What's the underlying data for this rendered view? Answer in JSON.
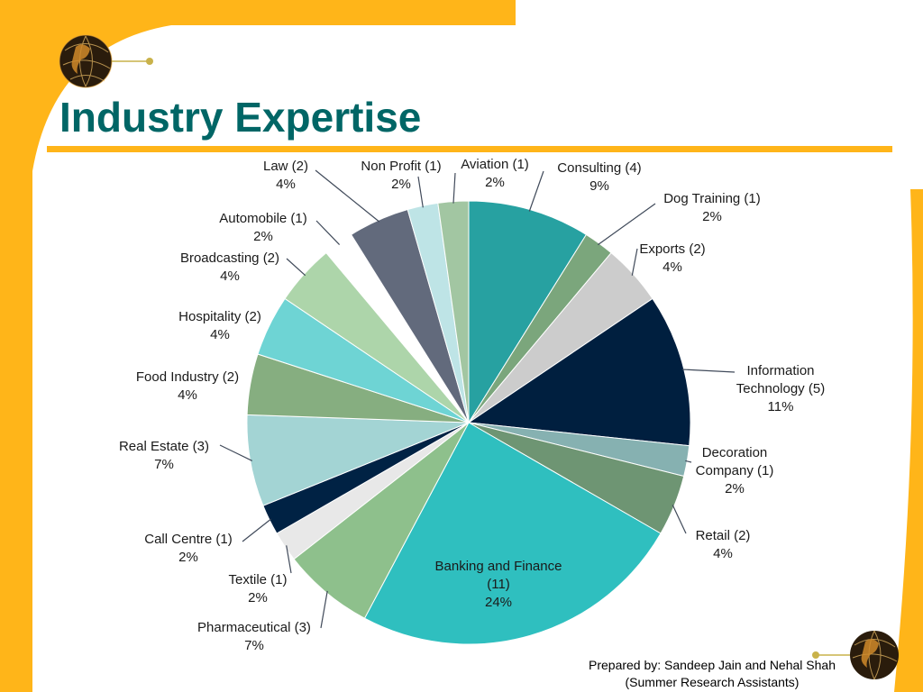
{
  "slide": {
    "title": "Industry Expertise",
    "footer_line1": "Prepared by: Sandeep Jain and Nehal Shah",
    "footer_line2": "(Summer Research Assistants)",
    "accent_color": "#FFB519",
    "title_color": "#006666",
    "logo_icon": "globe-icon"
  },
  "chart_data": {
    "type": "pie",
    "title": "",
    "start_angle_deg": 0,
    "direction": "clockwise",
    "slices": [
      {
        "name": "Consulting",
        "count": 4,
        "percent": "9%",
        "color": "#27A1A1",
        "label_lines": [
          "Consulting (4)",
          "9%"
        ]
      },
      {
        "name": "Dog Training",
        "count": 1,
        "percent": "2%",
        "color": "#7BA67C",
        "label_lines": [
          "Dog Training (1)",
          "2%"
        ]
      },
      {
        "name": "Exports",
        "count": 2,
        "percent": "4%",
        "color": "#CCCCCC",
        "label_lines": [
          "Exports (2)",
          "4%"
        ]
      },
      {
        "name": "Information Technology",
        "count": 5,
        "percent": "11%",
        "color": "#001F3F",
        "label_lines": [
          "Information",
          "Technology (5)",
          "11%"
        ]
      },
      {
        "name": "Decoration Company",
        "count": 1,
        "percent": "2%",
        "color": "#86B1B1",
        "label_lines": [
          "Decoration",
          "Company (1)",
          "2%"
        ]
      },
      {
        "name": "Retail",
        "count": 2,
        "percent": "4%",
        "color": "#6E9573",
        "label_lines": [
          "Retail (2)",
          "4%"
        ]
      },
      {
        "name": "Banking and Finance",
        "count": 11,
        "percent": "24%",
        "color": "#2FBFBF",
        "label_lines": [
          "Banking and Finance",
          "(11)",
          "24%"
        ]
      },
      {
        "name": "Pharmaceutical",
        "count": 3,
        "percent": "7%",
        "color": "#8EC08C",
        "label_lines": [
          "Pharmaceutical (3)",
          "7%"
        ]
      },
      {
        "name": "Textile",
        "count": 1,
        "percent": "2%",
        "color": "#E8E8E8",
        "label_lines": [
          "Textile (1)",
          "2%"
        ]
      },
      {
        "name": "Call Centre",
        "count": 1,
        "percent": "2%",
        "color": "#002244",
        "label_lines": [
          "Call Centre (1)",
          "2%"
        ]
      },
      {
        "name": "Real Estate",
        "count": 3,
        "percent": "7%",
        "color": "#A3D4D4",
        "label_lines": [
          "Real Estate (3)",
          "7%"
        ]
      },
      {
        "name": "Food Industry",
        "count": 2,
        "percent": "4%",
        "color": "#86AE80",
        "label_lines": [
          "Food Industry (2)",
          "4%"
        ]
      },
      {
        "name": "Hospitality",
        "count": 2,
        "percent": "4%",
        "color": "#6ED4D4",
        "label_lines": [
          "Hospitality (2)",
          "4%"
        ]
      },
      {
        "name": "Broadcasting",
        "count": 2,
        "percent": "4%",
        "color": "#ADD5AA",
        "label_lines": [
          "Broadcasting (2)",
          "4%"
        ]
      },
      {
        "name": "Automobile",
        "count": 1,
        "percent": "2%",
        "color": "#FFFFFF",
        "label_lines": [
          "Automobile (1)",
          "2%"
        ]
      },
      {
        "name": "Law",
        "count": 2,
        "percent": "4%",
        "color": "#626A7C",
        "label_lines": [
          "Law (2)",
          "4%"
        ]
      },
      {
        "name": "Non Profit",
        "count": 1,
        "percent": "2%",
        "color": "#BEE4E6",
        "label_lines": [
          "Non Profit (1)",
          "2%"
        ]
      },
      {
        "name": "Aviation",
        "count": 1,
        "percent": "2%",
        "color": "#A2C6A2",
        "label_lines": [
          "Aviation (1)",
          "2%"
        ]
      }
    ]
  }
}
